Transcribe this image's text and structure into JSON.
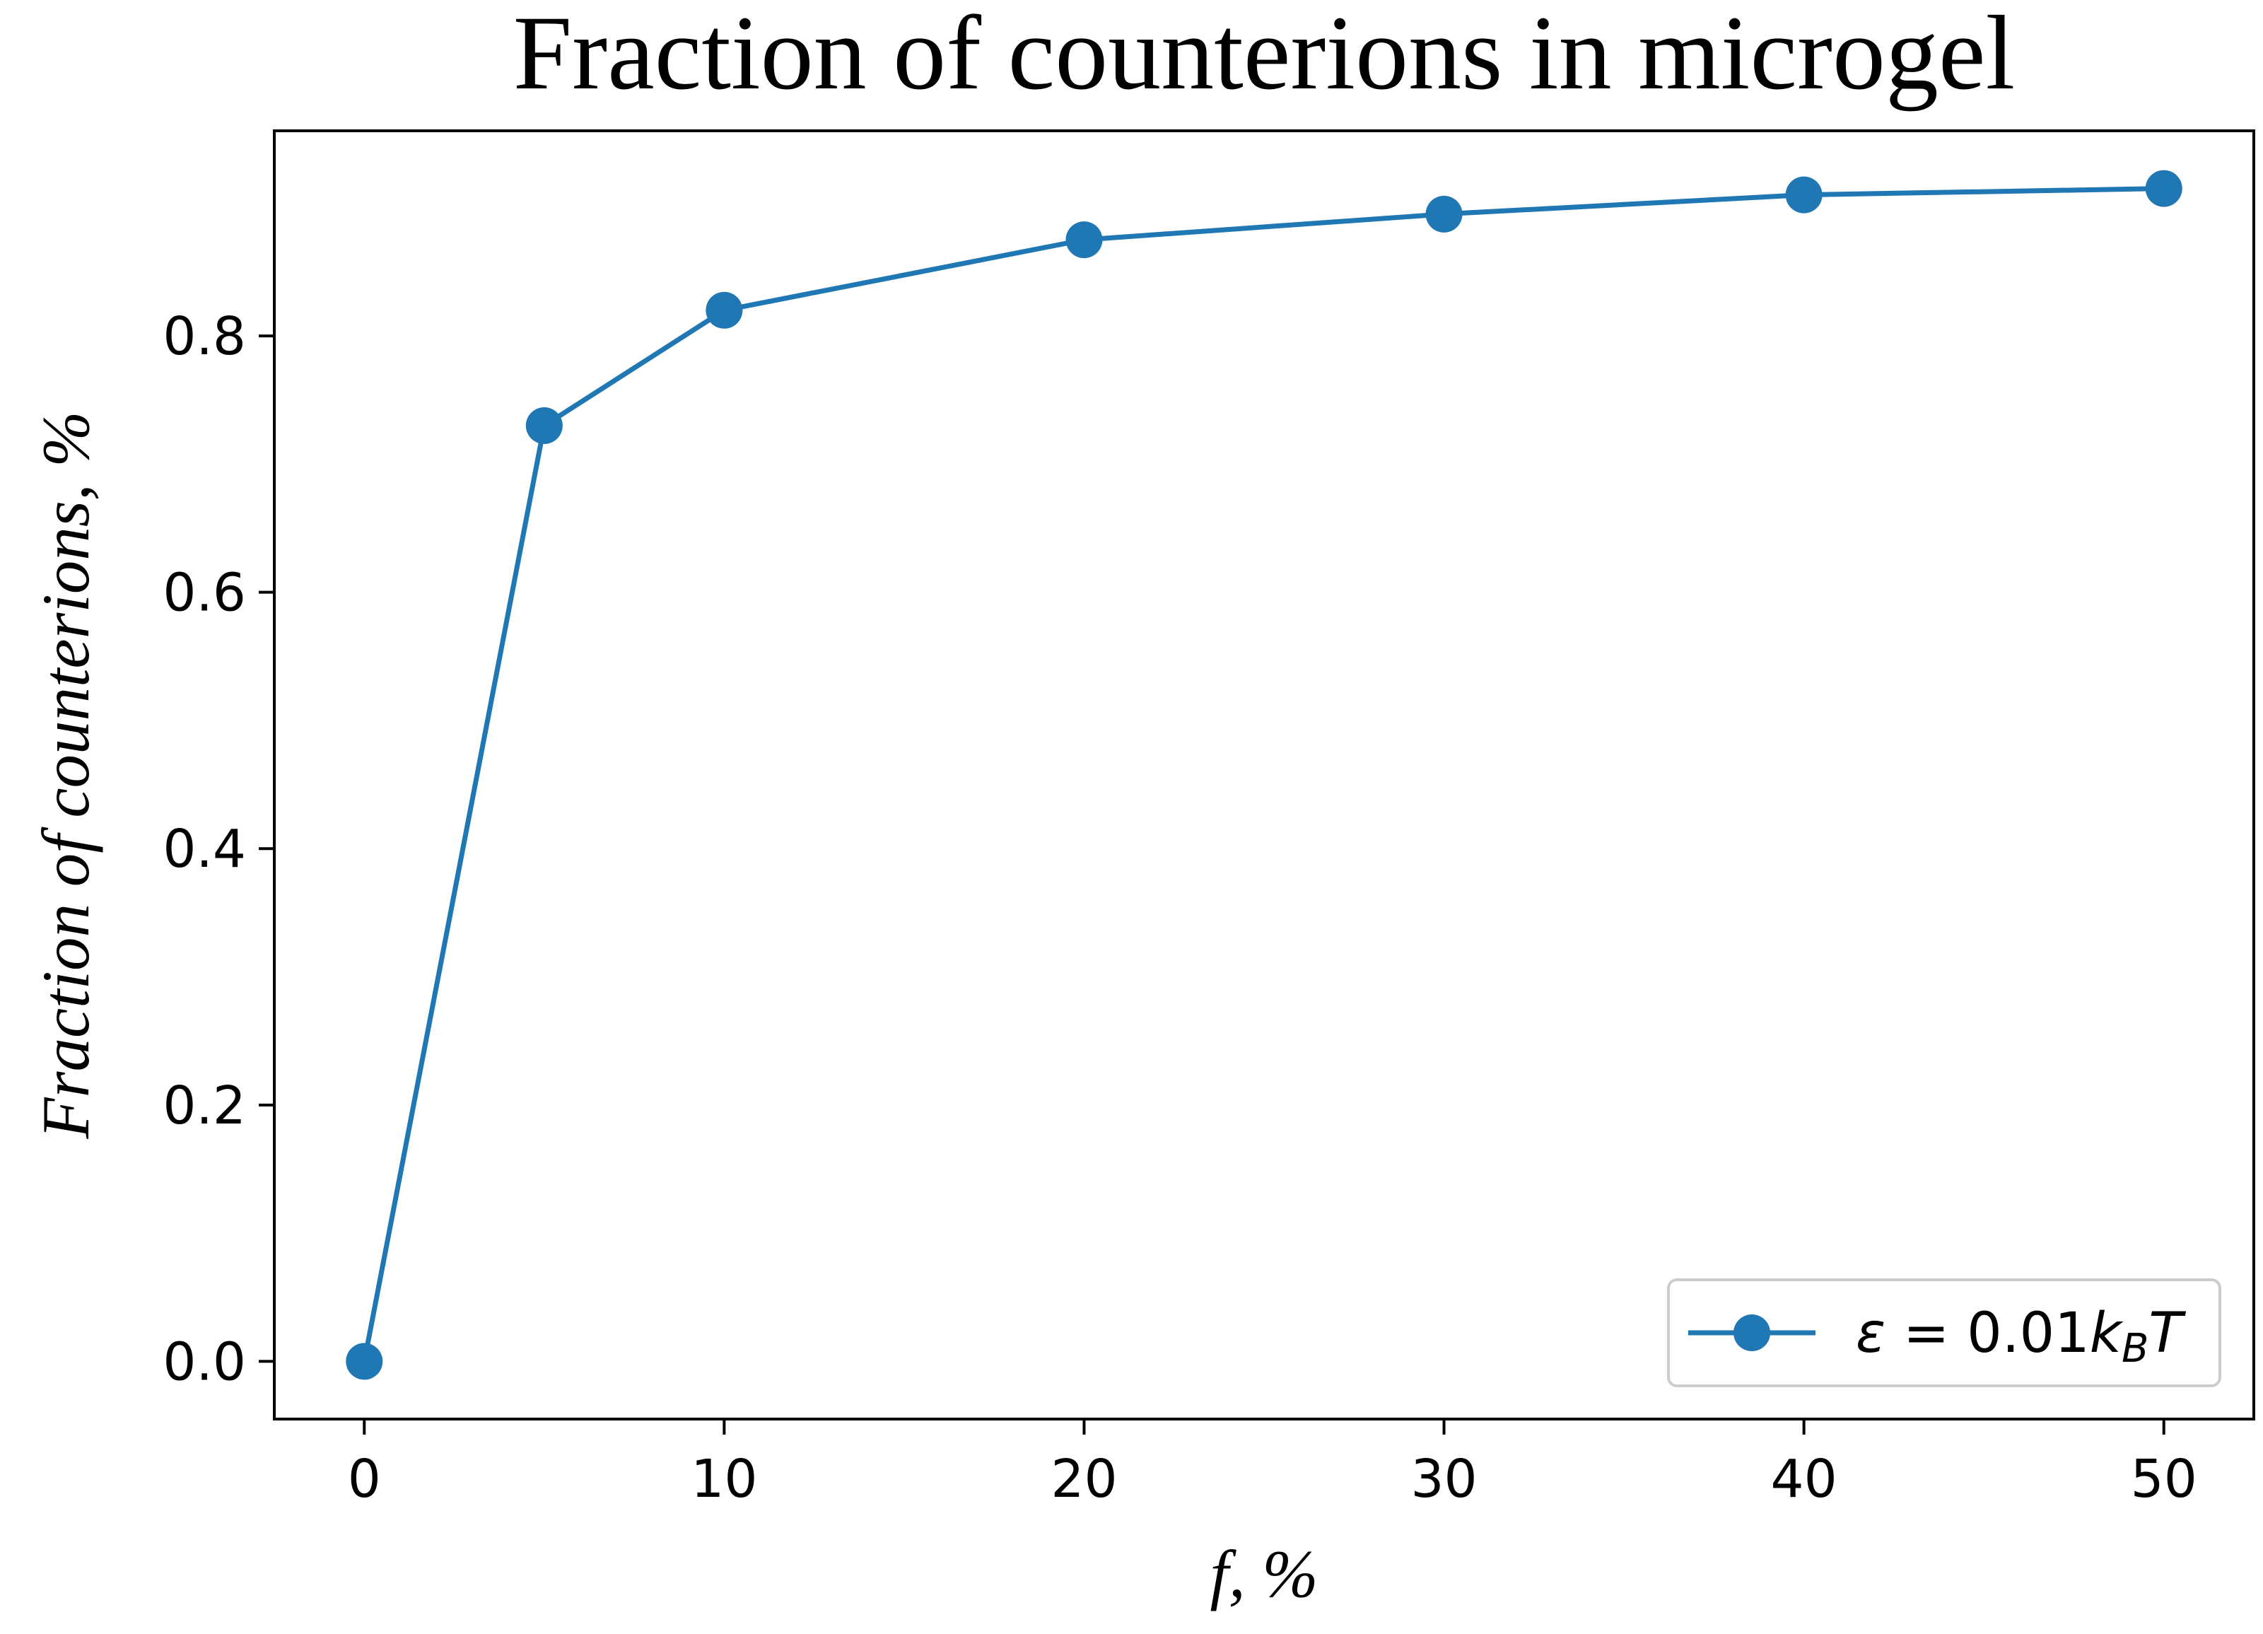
{
  "chart_data": {
    "type": "line",
    "title": "Fraction of counterions in microgel",
    "xlabel": "f, %",
    "ylabel": "Fraction of counterions, %",
    "x": [
      0,
      5,
      10,
      20,
      30,
      40,
      50
    ],
    "series": [
      {
        "name": "ε = 0.01k_BT",
        "name_parts": {
          "eps": "ε",
          "eq": " = 0.01",
          "k": "k",
          "sub": "B",
          "T": "T"
        },
        "values": [
          0.0,
          0.73,
          0.82,
          0.875,
          0.895,
          0.91,
          0.915
        ],
        "color": "#1f77b4",
        "marker": "circle"
      }
    ],
    "xlim": [
      -2.5,
      52.5
    ],
    "ylim": [
      -0.045,
      0.96
    ],
    "xticks": [
      0,
      10,
      20,
      30,
      40,
      50
    ],
    "xtick_labels": [
      "0",
      "10",
      "20",
      "30",
      "40",
      "50"
    ],
    "yticks": [
      0.0,
      0.2,
      0.4,
      0.6,
      0.8
    ],
    "ytick_labels": [
      "0.0",
      "0.2",
      "0.4",
      "0.6",
      "0.8"
    ],
    "grid": false,
    "legend_position": "lower-right"
  }
}
